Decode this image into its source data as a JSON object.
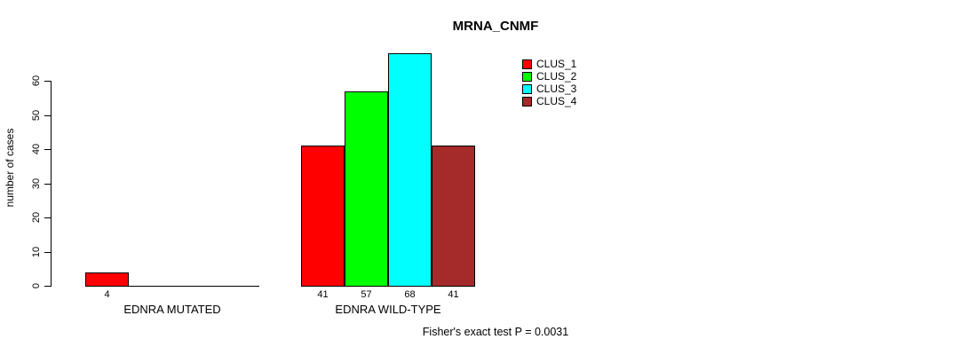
{
  "title": "MRNA_CNMF",
  "y_axis_label": "number of cases",
  "footer": "Fisher's exact test P = 0.0031",
  "chart_data": {
    "type": "bar",
    "title": "MRNA_CNMF",
    "xlabel": "",
    "ylabel": "number of cases",
    "ylim": [
      0,
      70
    ],
    "y_ticks": [
      0,
      10,
      20,
      30,
      40,
      50,
      60
    ],
    "categories": [
      "EDNRA MUTATED",
      "EDNRA WILD-TYPE"
    ],
    "series": [
      {
        "name": "CLUS_1",
        "color": "#ff0000",
        "values": [
          4,
          41
        ]
      },
      {
        "name": "CLUS_2",
        "color": "#00ff00",
        "values": [
          0,
          57
        ]
      },
      {
        "name": "CLUS_3",
        "color": "#00ffff",
        "values": [
          0,
          68
        ]
      },
      {
        "name": "CLUS_4",
        "color": "#a52a2a",
        "values": [
          0,
          41
        ]
      }
    ],
    "bar_value_labels_shown_when_nonzero": true,
    "legend_position": "top-right",
    "grid": false,
    "annotation": "Fisher's exact test P = 0.0031",
    "background_color": "#ffffff",
    "text_color": "#000000"
  }
}
